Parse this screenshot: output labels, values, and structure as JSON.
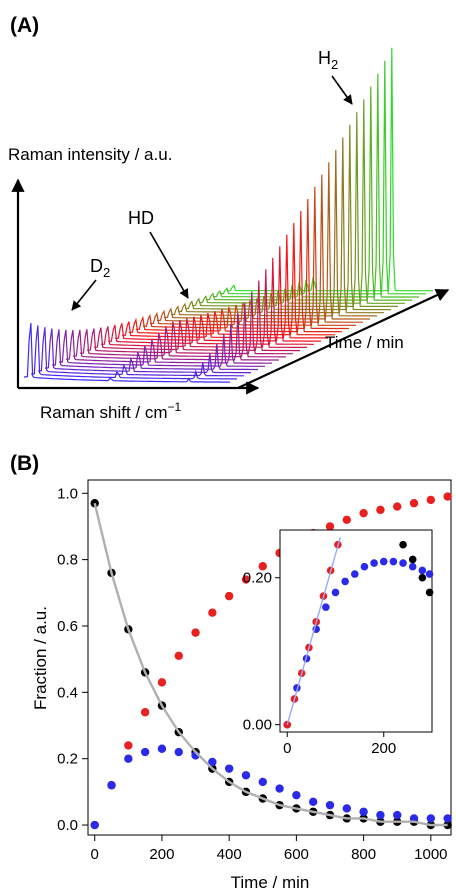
{
  "panel_a": {
    "label": "(A)",
    "y_axis_label": "Raman intensity / a.u.",
    "x_axis_label": "Raman shift / cm",
    "x_axis_superscript": "−1",
    "depth_axis_label": "Time / min",
    "annotations": {
      "h2": {
        "main": "H",
        "sub": "2"
      },
      "hd": {
        "main": "HD"
      },
      "d2": {
        "main": "D",
        "sub": "2"
      }
    }
  },
  "panel_b": {
    "label": "(B)"
  },
  "chart_data": [
    {
      "type": "line",
      "title": "",
      "description_waterfall": true,
      "xlabel": "Raman shift / cm−1",
      "ylabel": "Raman intensity / a.u.",
      "zlabel": "Time / min",
      "n_spectra": 30,
      "color_progression": [
        "#3a2bff",
        "#ff1010",
        "#2bdc2b"
      ],
      "series": [
        {
          "name": "D2",
          "trend": "decreasing"
        },
        {
          "name": "HD",
          "trend": "rise-then-fall"
        },
        {
          "name": "H2",
          "trend": "increasing"
        }
      ]
    },
    {
      "type": "scatter",
      "title": "",
      "xlabel": "Time / min",
      "ylabel": "Fraction / a.u.",
      "xlim": [
        -20,
        1060
      ],
      "ylim": [
        -0.03,
        1.04
      ],
      "xticks": [
        0,
        200,
        400,
        600,
        800,
        1000
      ],
      "yticks": [
        0.0,
        0.2,
        0.4,
        0.6,
        0.8,
        1.0
      ],
      "ytick_labels": [
        "0.0",
        "0.2",
        "0.4",
        "0.6",
        "0.8",
        "1.0"
      ],
      "series": [
        {
          "color": "#000000",
          "x": [
            0,
            50,
            100,
            150,
            200,
            250,
            300,
            350,
            400,
            450,
            500,
            550,
            600,
            650,
            700,
            750,
            800,
            850,
            900,
            950,
            1000,
            1050
          ],
          "values": [
            0.97,
            0.76,
            0.59,
            0.46,
            0.36,
            0.28,
            0.22,
            0.17,
            0.13,
            0.1,
            0.08,
            0.06,
            0.05,
            0.04,
            0.03,
            0.02,
            0.02,
            0.01,
            0.01,
            0.01,
            0.0,
            0.0
          ]
        },
        {
          "color": "#2a2ae8",
          "x": [
            0,
            50,
            100,
            150,
            200,
            250,
            300,
            350,
            400,
            450,
            500,
            550,
            600,
            650,
            700,
            750,
            800,
            850,
            900,
            950,
            1000,
            1050
          ],
          "values": [
            0.0,
            0.12,
            0.2,
            0.22,
            0.23,
            0.22,
            0.21,
            0.19,
            0.17,
            0.15,
            0.13,
            0.11,
            0.09,
            0.07,
            0.06,
            0.05,
            0.04,
            0.03,
            0.03,
            0.02,
            0.02,
            0.02
          ]
        },
        {
          "color": "#e82020",
          "x": [
            0,
            50,
            100,
            150,
            200,
            250,
            300,
            350,
            400,
            450,
            500,
            550,
            600,
            650,
            700,
            750,
            800,
            850,
            900,
            950,
            1000,
            1050
          ],
          "values": [
            0.0,
            0.12,
            0.24,
            0.34,
            0.43,
            0.51,
            0.58,
            0.64,
            0.69,
            0.74,
            0.78,
            0.82,
            0.85,
            0.88,
            0.9,
            0.92,
            0.94,
            0.95,
            0.96,
            0.97,
            0.98,
            0.99
          ]
        },
        {
          "type": "line",
          "color": "#b0b0b0",
          "x": [
            0,
            50,
            100,
            150,
            200,
            250,
            300,
            350,
            400,
            450,
            500,
            550,
            600,
            650,
            700,
            750,
            800,
            850,
            900,
            950,
            1000,
            1050
          ],
          "values": [
            0.97,
            0.76,
            0.59,
            0.46,
            0.36,
            0.28,
            0.22,
            0.17,
            0.13,
            0.1,
            0.08,
            0.06,
            0.05,
            0.04,
            0.03,
            0.02,
            0.02,
            0.01,
            0.01,
            0.01,
            0.0,
            0.0
          ]
        }
      ],
      "inset": {
        "xlim": [
          -15,
          300
        ],
        "ylim": [
          -0.01,
          0.265
        ],
        "xticks": [
          0,
          200
        ],
        "yticks": [
          0.0,
          0.2
        ],
        "ytick_labels": [
          "0.00",
          "0.20"
        ],
        "series": [
          {
            "color": "#000000",
            "x": [
              240,
              260,
              280,
              295
            ],
            "values": [
              0.245,
              0.225,
              0.2,
              0.18
            ]
          },
          {
            "color": "#2a2ae8",
            "x": [
              0,
              20,
              40,
              60,
              80,
              100,
              120,
              140,
              160,
              180,
              200,
              220,
              240,
              260,
              280,
              295
            ],
            "values": [
              0.0,
              0.05,
              0.09,
              0.13,
              0.16,
              0.18,
              0.195,
              0.205,
              0.215,
              0.22,
              0.222,
              0.222,
              0.22,
              0.215,
              0.21,
              0.205
            ]
          },
          {
            "color": "#e82020",
            "x": [
              0,
              15,
              30,
              45,
              60,
              75,
              90,
              105
            ],
            "values": [
              0.0,
              0.035,
              0.07,
              0.105,
              0.14,
              0.175,
              0.21,
              0.245
            ]
          },
          {
            "type": "line",
            "color": "#9aa8ff",
            "x": [
              0,
              110
            ],
            "values": [
              0.0,
              0.255
            ]
          }
        ]
      }
    }
  ]
}
